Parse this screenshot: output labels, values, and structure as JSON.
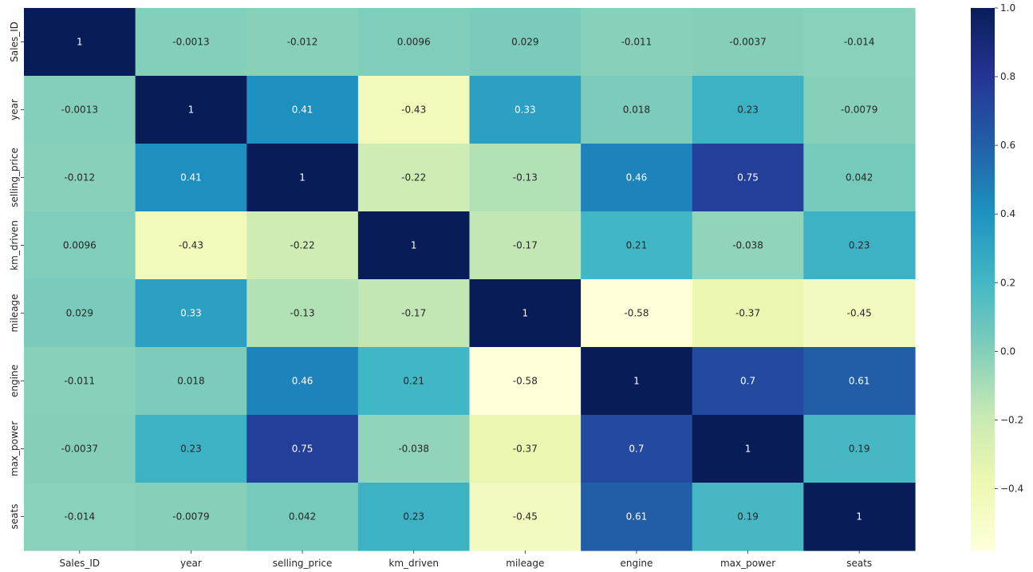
{
  "chart_data": {
    "type": "heatmap",
    "title": "",
    "xlabel": "",
    "ylabel": "",
    "rows": [
      "Sales_ID",
      "year",
      "selling_price",
      "km_driven",
      "mileage",
      "engine",
      "max_power",
      "seats"
    ],
    "columns": [
      "Sales_ID",
      "year",
      "selling_price",
      "km_driven",
      "mileage",
      "engine",
      "max_power",
      "seats"
    ],
    "values": [
      [
        1,
        -0.0013,
        -0.012,
        0.0096,
        0.029,
        -0.011,
        -0.0037,
        -0.014
      ],
      [
        -0.0013,
        1,
        0.41,
        -0.43,
        0.33,
        0.018,
        0.23,
        -0.0079
      ],
      [
        -0.012,
        0.41,
        1,
        -0.22,
        -0.13,
        0.46,
        0.75,
        0.042
      ],
      [
        0.0096,
        -0.43,
        -0.22,
        1,
        -0.17,
        0.21,
        -0.038,
        0.23
      ],
      [
        0.029,
        0.33,
        -0.13,
        -0.17,
        1,
        -0.58,
        -0.37,
        -0.45
      ],
      [
        -0.011,
        0.018,
        0.46,
        0.21,
        -0.58,
        1,
        0.7,
        0.61
      ],
      [
        -0.0037,
        0.23,
        0.75,
        -0.038,
        -0.37,
        0.7,
        1,
        0.19
      ],
      [
        -0.014,
        -0.0079,
        0.042,
        0.23,
        -0.45,
        0.61,
        0.19,
        1
      ]
    ],
    "annotations": [
      [
        "1",
        "-0.0013",
        "-0.012",
        "0.0096",
        "0.029",
        "-0.011",
        "-0.0037",
        "-0.014"
      ],
      [
        "-0.0013",
        "1",
        "0.41",
        "-0.43",
        "0.33",
        "0.018",
        "0.23",
        "-0.0079"
      ],
      [
        "-0.012",
        "0.41",
        "1",
        "-0.22",
        "-0.13",
        "0.46",
        "0.75",
        "0.042"
      ],
      [
        "0.0096",
        "-0.43",
        "-0.22",
        "1",
        "-0.17",
        "0.21",
        "-0.038",
        "0.23"
      ],
      [
        "0.029",
        "0.33",
        "-0.13",
        "-0.17",
        "1",
        "-0.58",
        "-0.37",
        "-0.45"
      ],
      [
        "-0.011",
        "0.018",
        "0.46",
        "0.21",
        "-0.58",
        "1",
        "0.7",
        "0.61"
      ],
      [
        "-0.0037",
        "0.23",
        "0.75",
        "-0.038",
        "-0.37",
        "0.7",
        "1",
        "0.19"
      ],
      [
        "-0.014",
        "-0.0079",
        "0.042",
        "0.23",
        "-0.45",
        "0.61",
        "0.19",
        "1"
      ]
    ],
    "colormap": "YlGnBu",
    "vmin": -0.58,
    "vmax": 1.0,
    "colorbar": {
      "ticks": [
        1.0,
        0.8,
        0.6,
        0.4,
        0.2,
        0.0,
        -0.2,
        -0.4
      ],
      "tick_labels": [
        "1.0",
        "0.8",
        "0.6",
        "0.4",
        "0.2",
        "0.0",
        "−0.2",
        "−0.4"
      ],
      "position": "right"
    },
    "grid": false,
    "legend": "none"
  },
  "colors": {
    "background": "#ffffff",
    "text_dark": "#262626",
    "text_light": "#ffffff",
    "ylgnbu_stops": [
      "#ffffd9",
      "#edf8b1",
      "#c7e9b4",
      "#7fcdbb",
      "#41b6c4",
      "#1d91c0",
      "#225ea8",
      "#253494",
      "#081d58"
    ]
  }
}
